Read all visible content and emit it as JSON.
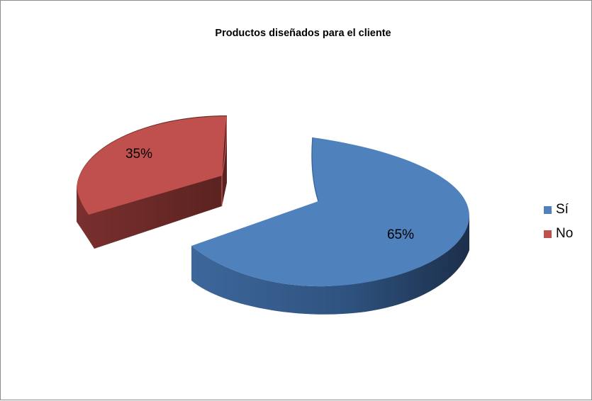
{
  "chart_data": {
    "type": "pie",
    "title": "Productos diseñados para el cliente",
    "style": "3d-exploded",
    "legend_position": "right",
    "categories": [
      "Sí",
      "No"
    ],
    "values": [
      65,
      35
    ],
    "data_labels": [
      "65%",
      "35%"
    ],
    "colors": [
      "#4f81bd",
      "#c0504d"
    ],
    "side_colors": [
      "#3a6394",
      "#6e2a28"
    ],
    "legend": [
      {
        "label": "Sí",
        "color": "#4f81bd"
      },
      {
        "label": "No",
        "color": "#c0504d"
      }
    ]
  }
}
